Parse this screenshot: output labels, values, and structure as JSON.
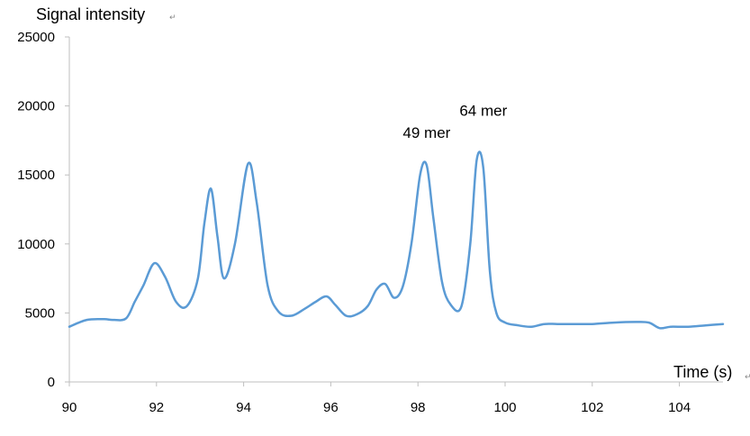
{
  "chart_data": {
    "type": "line",
    "title": "",
    "xlabel": "Time (s)",
    "ylabel": "Signal intensity",
    "xlim": [
      90,
      105
    ],
    "ylim": [
      0,
      25000
    ],
    "x_ticks": [
      90,
      92,
      94,
      96,
      98,
      100,
      102,
      104
    ],
    "y_ticks": [
      0,
      5000,
      10000,
      15000,
      20000,
      25000
    ],
    "grid": false,
    "legend": "none",
    "line_color": "#5b9bd5",
    "series": [
      {
        "x": [
          90.0,
          90.4,
          90.8,
          91.0,
          91.3,
          91.5,
          91.7,
          91.95,
          92.2,
          92.45,
          92.7,
          92.95,
          93.1,
          93.25,
          93.4,
          93.55,
          93.8,
          94.1,
          94.3,
          94.55,
          94.8,
          95.1,
          95.4,
          95.65,
          95.9,
          96.1,
          96.35,
          96.6,
          96.85,
          97.05,
          97.25,
          97.45,
          97.65,
          97.85,
          98.05,
          98.2,
          98.35,
          98.55,
          98.75,
          99.0,
          99.2,
          99.35,
          99.5,
          99.65,
          99.8,
          100.0,
          100.3,
          100.6,
          100.9,
          101.2,
          101.6,
          102.0,
          102.5,
          103.0,
          103.3,
          103.55,
          103.8,
          104.2,
          104.6,
          105.0
        ],
        "y": [
          4000,
          4500,
          4550,
          4500,
          4600,
          5800,
          7000,
          8600,
          7600,
          5800,
          5500,
          7500,
          11500,
          14000,
          10500,
          7500,
          10000,
          15800,
          13000,
          7000,
          5100,
          4800,
          5300,
          5800,
          6200,
          5600,
          4800,
          4900,
          5500,
          6700,
          7100,
          6100,
          6900,
          10000,
          15000,
          15700,
          12000,
          7300,
          5600,
          5500,
          10000,
          16100,
          15500,
          8000,
          5000,
          4300,
          4100,
          4000,
          4200,
          4200,
          4200,
          4200,
          4300,
          4350,
          4300,
          3900,
          4000,
          4000,
          4100,
          4200
        ]
      }
    ],
    "annotations": [
      {
        "text": "49 mer",
        "x": 98.2,
        "y": 17700
      },
      {
        "text": "64 mer",
        "x": 99.5,
        "y": 19300
      }
    ]
  }
}
